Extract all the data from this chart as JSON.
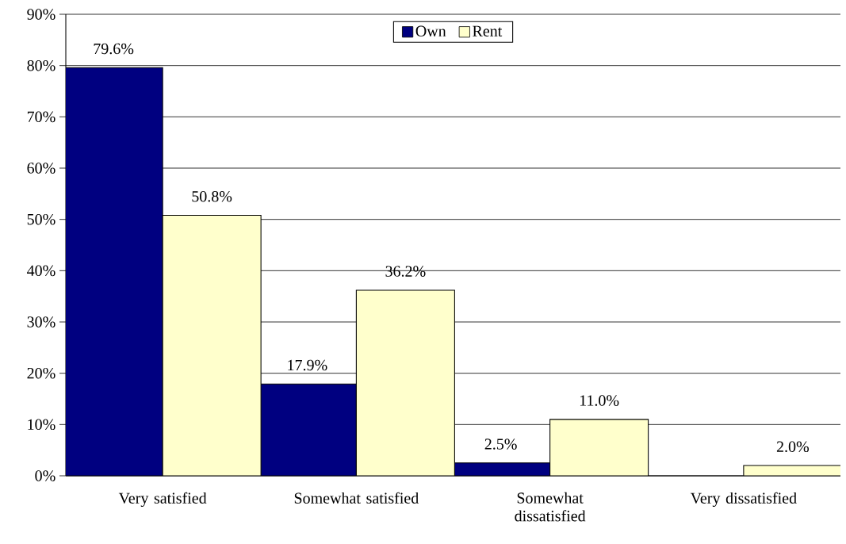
{
  "chart_data": {
    "type": "bar",
    "categories": [
      "Very satisfied",
      "Somewhat satisfied",
      "Somewhat dissatisfied",
      "Very dissatisfied"
    ],
    "series": [
      {
        "name": "Own",
        "color": "#000080",
        "values": [
          79.6,
          17.9,
          2.5,
          null
        ],
        "value_labels": [
          "79.6%",
          "17.9%",
          "2.5%",
          null
        ]
      },
      {
        "name": "Rent",
        "color": "#ffffcc",
        "values": [
          50.8,
          36.2,
          11.0,
          2.0
        ],
        "value_labels": [
          "50.8%",
          "36.2%",
          "11.0%",
          "2.0%"
        ]
      }
    ],
    "ylim": [
      0,
      90
    ],
    "yticks": [
      {
        "value": 0,
        "label": "0%"
      },
      {
        "value": 10,
        "label": "10%"
      },
      {
        "value": 20,
        "label": "20%"
      },
      {
        "value": 30,
        "label": "30%"
      },
      {
        "value": 40,
        "label": "40%"
      },
      {
        "value": 50,
        "label": "50%"
      },
      {
        "value": 60,
        "label": "60%"
      },
      {
        "value": 70,
        "label": "70%"
      },
      {
        "value": 80,
        "label": "80%"
      },
      {
        "value": 90,
        "label": "90%"
      }
    ],
    "grid": "y",
    "legend": "top"
  }
}
